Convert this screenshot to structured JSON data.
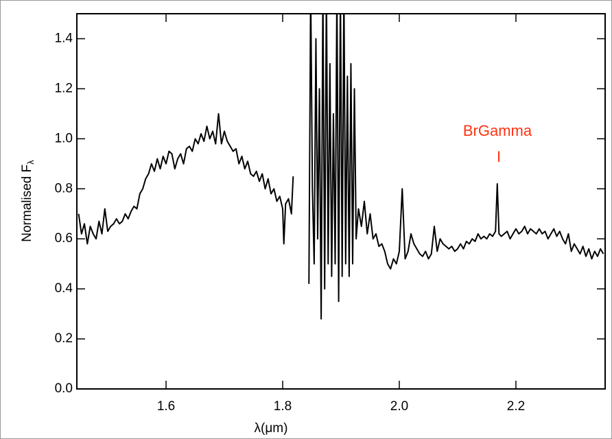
{
  "chart_data": {
    "type": "line",
    "x_label": "λ(μm)",
    "y_label": "Normalised F",
    "y_label_subscript": "λ",
    "annotations": [
      "BrGamma",
      "I"
    ],
    "xlim": [
      1.447,
      2.353
    ],
    "ylim": [
      0,
      1.5
    ],
    "xticks": [
      1.6,
      1.8,
      {
        "value": 2.0,
        "label": "2.0"
      },
      2.2
    ],
    "yticks": [
      {
        "value": 0,
        "label": "0.0"
      },
      0.2,
      0.4,
      0.6,
      0.8,
      {
        "value": 1.0,
        "label": "1.0"
      },
      1.2,
      1.4
    ],
    "series": [
      {
        "color": "#000000",
        "x": [
          1.45,
          1.455,
          1.46,
          1.465,
          1.47,
          1.475,
          1.48,
          1.485,
          1.49,
          1.495,
          1.5,
          1.505,
          1.51,
          1.515,
          1.52,
          1.525,
          1.53,
          1.535,
          1.54,
          1.545,
          1.55,
          1.555,
          1.56,
          1.565,
          1.57,
          1.575,
          1.58,
          1.585,
          1.59,
          1.595,
          1.6,
          1.605,
          1.61,
          1.615,
          1.62,
          1.625,
          1.63,
          1.635,
          1.64,
          1.645,
          1.65,
          1.655,
          1.66,
          1.665,
          1.67,
          1.675,
          1.68,
          1.685,
          1.69,
          1.695,
          1.7,
          1.705,
          1.71,
          1.715,
          1.72,
          1.725,
          1.73,
          1.735,
          1.74,
          1.745,
          1.75,
          1.755,
          1.76,
          1.765,
          1.77,
          1.775,
          1.78,
          1.785,
          1.79,
          1.795,
          1.8,
          1.802,
          1.805,
          1.81,
          1.815,
          1.818,
          1.83,
          1.845,
          1.848,
          1.851,
          1.854,
          1.857,
          1.86,
          1.863,
          1.866,
          1.869,
          1.872,
          1.875,
          1.878,
          1.881,
          1.884,
          1.887,
          1.89,
          1.893,
          1.896,
          1.899,
          1.902,
          1.905,
          1.908,
          1.911,
          1.914,
          1.917,
          1.92,
          1.923,
          1.926,
          1.93,
          1.935,
          1.94,
          1.945,
          1.95,
          1.955,
          1.96,
          1.965,
          1.97,
          1.975,
          1.98,
          1.985,
          1.99,
          1.995,
          2.0,
          2.005,
          2.01,
          2.015,
          2.02,
          2.025,
          2.03,
          2.035,
          2.04,
          2.045,
          2.05,
          2.055,
          2.06,
          2.065,
          2.07,
          2.075,
          2.08,
          2.085,
          2.09,
          2.095,
          2.1,
          2.105,
          2.11,
          2.115,
          2.12,
          2.125,
          2.13,
          2.135,
          2.14,
          2.145,
          2.15,
          2.155,
          2.16,
          2.165,
          2.168,
          2.171,
          2.175,
          2.18,
          2.185,
          2.19,
          2.195,
          2.2,
          2.205,
          2.21,
          2.215,
          2.22,
          2.225,
          2.23,
          2.235,
          2.24,
          2.245,
          2.25,
          2.255,
          2.26,
          2.265,
          2.27,
          2.275,
          2.28,
          2.285,
          2.29,
          2.295,
          2.3,
          2.305,
          2.31,
          2.315,
          2.32,
          2.325,
          2.33,
          2.335,
          2.34,
          2.345,
          2.35
        ],
        "values": [
          0.7,
          0.62,
          0.66,
          0.58,
          0.65,
          0.62,
          0.6,
          0.67,
          0.62,
          0.72,
          0.63,
          0.65,
          0.66,
          0.68,
          0.66,
          0.67,
          0.7,
          0.68,
          0.71,
          0.73,
          0.72,
          0.78,
          0.8,
          0.84,
          0.86,
          0.9,
          0.87,
          0.92,
          0.88,
          0.93,
          0.9,
          0.95,
          0.94,
          0.88,
          0.92,
          0.94,
          0.9,
          0.96,
          0.97,
          0.95,
          1.0,
          0.98,
          1.02,
          0.99,
          1.05,
          1.0,
          1.03,
          0.98,
          1.1,
          0.98,
          1.03,
          0.99,
          0.97,
          0.95,
          0.96,
          0.9,
          0.93,
          0.88,
          0.91,
          0.86,
          0.85,
          0.87,
          0.83,
          0.86,
          0.8,
          0.84,
          0.78,
          0.8,
          0.75,
          0.77,
          0.72,
          0.58,
          0.74,
          0.76,
          0.7,
          0.85,
          null,
          0.42,
          1.6,
          0.8,
          0.5,
          1.4,
          0.6,
          1.2,
          0.28,
          1.6,
          0.4,
          1.6,
          0.5,
          1.3,
          0.45,
          1.1,
          0.5,
          1.6,
          0.35,
          1.6,
          0.45,
          1.6,
          0.5,
          1.25,
          0.45,
          1.3,
          0.5,
          1.2,
          0.6,
          0.72,
          0.65,
          0.75,
          0.62,
          0.7,
          0.6,
          0.62,
          0.57,
          0.58,
          0.55,
          0.5,
          0.48,
          0.52,
          0.5,
          0.55,
          0.8,
          0.52,
          0.55,
          0.62,
          0.58,
          0.56,
          0.54,
          0.53,
          0.55,
          0.52,
          0.54,
          0.65,
          0.55,
          0.6,
          0.58,
          0.57,
          0.56,
          0.57,
          0.55,
          0.56,
          0.58,
          0.56,
          0.59,
          0.58,
          0.6,
          0.59,
          0.62,
          0.6,
          0.61,
          0.6,
          0.62,
          0.61,
          0.63,
          0.82,
          0.62,
          0.61,
          0.62,
          0.63,
          0.6,
          0.62,
          0.64,
          0.62,
          0.63,
          0.65,
          0.62,
          0.64,
          0.63,
          0.62,
          0.64,
          0.62,
          0.63,
          0.6,
          0.62,
          0.64,
          0.61,
          0.63,
          0.6,
          0.58,
          0.62,
          0.55,
          0.58,
          0.56,
          0.54,
          0.57,
          0.53,
          0.56,
          0.52,
          0.55,
          0.53,
          0.56,
          0.54
        ]
      }
    ]
  }
}
